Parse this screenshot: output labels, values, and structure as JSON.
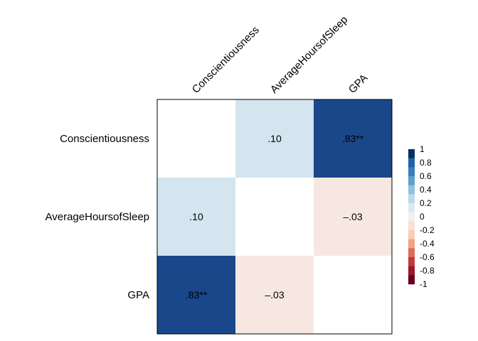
{
  "chart_data": {
    "type": "heatmap",
    "variables": [
      "Conscientiousness",
      "AverageHoursofSleep",
      "GPA"
    ],
    "matrix": [
      [
        1.0,
        0.1,
        0.83
      ],
      [
        0.1,
        1.0,
        -0.03
      ],
      [
        0.83,
        -0.03,
        1.0
      ]
    ],
    "cell_labels": [
      [
        "",
        ".10",
        ".83**"
      ],
      [
        ".10",
        "",
        "–.03"
      ],
      [
        ".83**",
        "–.03",
        ""
      ]
    ],
    "diagonal_blank": true,
    "color_scale": {
      "min": -1,
      "max": 1,
      "ticks": [
        "1",
        "0.8",
        "0.6",
        "0.4",
        "0.2",
        "0",
        "-0.2",
        "-0.4",
        "-0.6",
        "-0.8",
        "-1"
      ],
      "tick_values": [
        1,
        0.8,
        0.6,
        0.4,
        0.2,
        0,
        -0.2,
        -0.4,
        -0.6,
        -0.8,
        -1
      ],
      "bands_top_to_bottom": [
        "#053061",
        "#1f63a8",
        "#3a7fba",
        "#5fa0cc",
        "#8fc0de",
        "#bcd9ea",
        "#dde9f2",
        "#f4f0ee",
        "#f6e2d6",
        "#f8cdb5",
        "#f2a484",
        "#dc6e57",
        "#c43a3a",
        "#a0152a",
        "#67001f"
      ]
    },
    "colors": {
      "strong_positive": "#19478a",
      "weak_positive": "#d4e5ef",
      "weak_negative": "#f6e8e1",
      "diagonal": "#ffffff",
      "border": "#000000"
    }
  }
}
